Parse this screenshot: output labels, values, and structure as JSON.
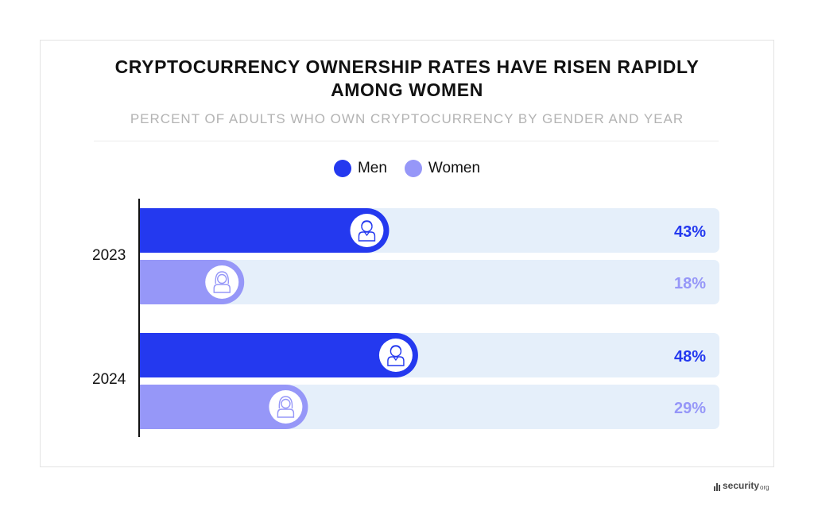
{
  "title_line1": "CRYPTOCURRENCY OWNERSHIP RATES HAVE RISEN RAPIDLY",
  "title_line2": "AMONG WOMEN",
  "subtitle": "PERCENT OF ADULTS WHO OWN CRYPTOCURRENCY BY GENDER AND YEAR",
  "legend": [
    {
      "label": "Men",
      "color": "#2439ef"
    },
    {
      "label": "Women",
      "color": "#9697f8"
    }
  ],
  "colors": {
    "track": "#e5effa",
    "men": "#2439ef",
    "women": "#9697f8"
  },
  "icons": {
    "men": "man-avatar-icon",
    "women": "woman-avatar-icon"
  },
  "footer": {
    "brand": "security",
    "suffix": "org"
  },
  "chart_data": {
    "type": "bar",
    "orientation": "horizontal",
    "title": "CRYPTOCURRENCY OWNERSHIP RATES HAVE RISEN RAPIDLY AMONG WOMEN",
    "subtitle": "PERCENT OF ADULTS WHO OWN CRYPTOCURRENCY BY GENDER AND YEAR",
    "categories": [
      "2023",
      "2024"
    ],
    "series": [
      {
        "name": "Men",
        "values": [
          43,
          48
        ],
        "labels": [
          "43%",
          "48%"
        ]
      },
      {
        "name": "Women",
        "values": [
          18,
          29
        ],
        "labels": [
          "18%",
          "29%"
        ]
      }
    ],
    "xlim": [
      0,
      100
    ],
    "unit": "%",
    "legend": "top-center",
    "grid": false
  }
}
